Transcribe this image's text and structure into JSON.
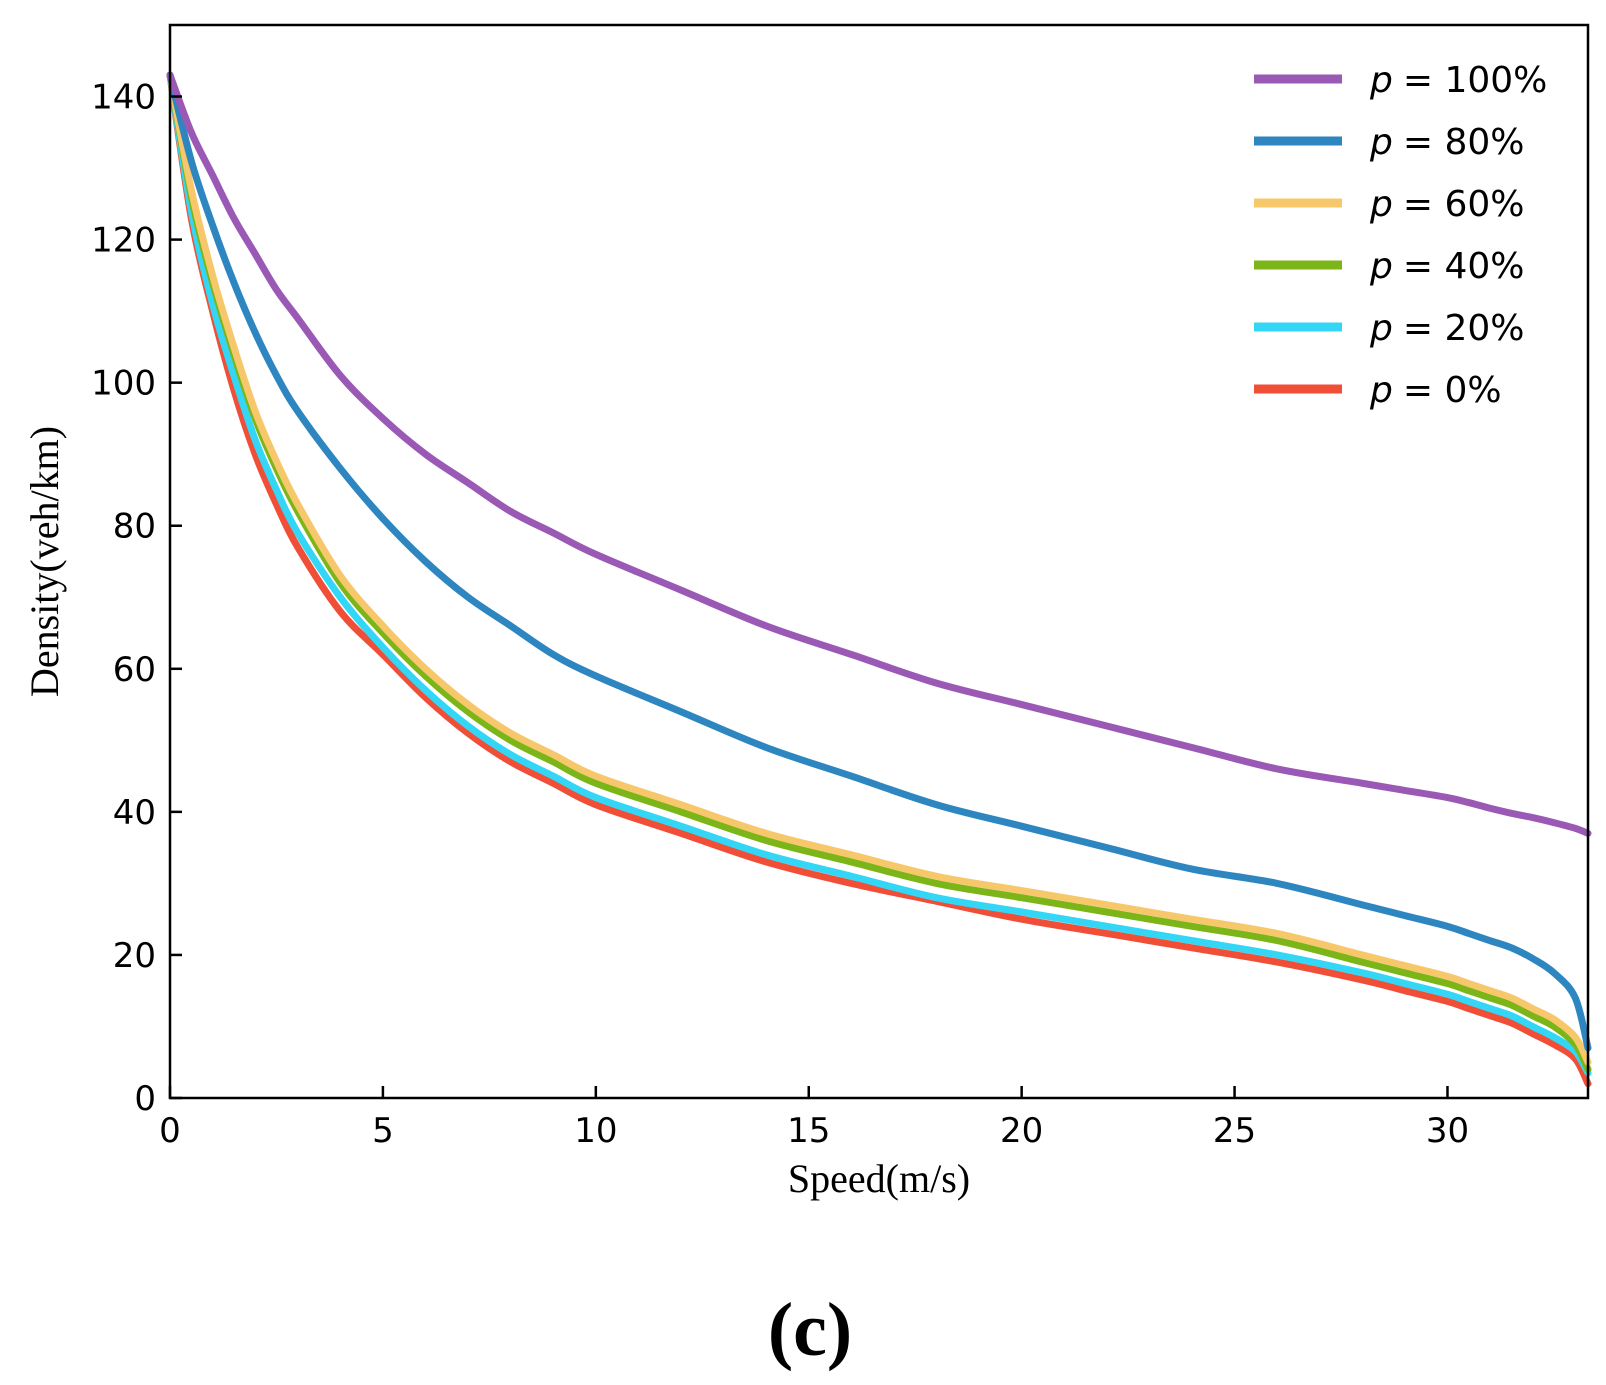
{
  "chart_data": {
    "type": "line",
    "title": "",
    "xlabel": "Speed(m/s)",
    "ylabel": "Density(veh/km)",
    "xlim": [
      0,
      33.3
    ],
    "ylim": [
      0,
      150
    ],
    "xticks": [
      0,
      5,
      10,
      15,
      20,
      25,
      30
    ],
    "yticks": [
      0,
      20,
      40,
      60,
      80,
      100,
      120,
      140
    ],
    "grid": false,
    "legend_position": "top-right",
    "panel_label": "(c)",
    "x": [
      0,
      0.5,
      1,
      1.5,
      2,
      2.5,
      3,
      4,
      5,
      6,
      7,
      8,
      9,
      10,
      12,
      14,
      16,
      18,
      20,
      22,
      24,
      26,
      28,
      29,
      30,
      30.5,
      31,
      31.5,
      32,
      32.5,
      33,
      33.3
    ],
    "series": [
      {
        "name": "p = 100%",
        "p_label": "p",
        "value_label": "= 100%",
        "color": "#9b59b6",
        "values": [
          143,
          135,
          129,
          123,
          118,
          113,
          109,
          101,
          95,
          90,
          86,
          82,
          79,
          76,
          71,
          66,
          62,
          58,
          55,
          52,
          49,
          46,
          44,
          43,
          42,
          41.3,
          40.5,
          39.8,
          39.2,
          38.5,
          37.7,
          37
        ]
      },
      {
        "name": "p = 80%",
        "p_label": "p",
        "value_label": "= 80%",
        "color": "#2e86c1",
        "values": [
          143,
          131,
          122,
          114,
          107,
          101,
          96,
          88,
          81,
          75,
          70,
          66,
          62,
          59,
          54,
          49,
          45,
          41,
          38,
          35,
          32,
          30,
          27,
          25.5,
          24,
          23,
          22,
          21,
          19.5,
          17.5,
          14,
          7
        ]
      },
      {
        "name": "p = 60%",
        "p_label": "p",
        "value_label": "= 60%",
        "color": "#f7c86b",
        "values": [
          143,
          127,
          115,
          105,
          96,
          89,
          83,
          73,
          66,
          60,
          55,
          51,
          48,
          45,
          41,
          37,
          34,
          31,
          29,
          27,
          25,
          23,
          20,
          18.5,
          17,
          16,
          15,
          14,
          12.5,
          11,
          8.5,
          5
        ]
      },
      {
        "name": "p = 40%",
        "p_label": "p",
        "value_label": "= 40%",
        "color": "#7cb518",
        "values": [
          143,
          126,
          114,
          104,
          95,
          88,
          82,
          72,
          65,
          59,
          54,
          50,
          47,
          44,
          40,
          36,
          33,
          30,
          28,
          26,
          24,
          22,
          19,
          17.5,
          16,
          15,
          14,
          13,
          11.5,
          10,
          7.5,
          4
        ]
      },
      {
        "name": "p = 20%",
        "p_label": "p",
        "value_label": "= 20%",
        "color": "#33d6f5",
        "values": [
          143,
          124,
          111,
          101,
          92,
          85,
          79,
          70,
          63,
          57,
          52,
          48,
          45,
          42,
          38,
          34,
          31,
          28,
          26,
          24,
          22,
          20,
          17.5,
          16,
          14.5,
          13.5,
          12.5,
          11.5,
          10,
          8.5,
          6.5,
          3.5
        ]
      },
      {
        "name": "p = 0%",
        "p_label": "p",
        "value_label": "= 0%",
        "color": "#f04e37",
        "values": [
          143,
          123,
          110,
          99,
          90,
          83,
          77,
          68,
          62,
          56,
          51,
          47,
          44,
          41,
          37,
          33,
          30,
          27.5,
          25,
          23,
          21,
          19,
          16.5,
          15,
          13.5,
          12.5,
          11.5,
          10.5,
          9,
          7.5,
          5.5,
          2
        ]
      }
    ]
  }
}
